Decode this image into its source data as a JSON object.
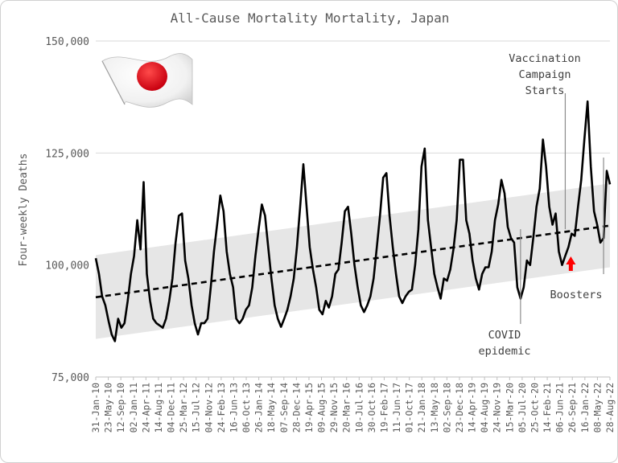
{
  "chart_data": {
    "type": "line",
    "title": "All-Cause Mortality Mortality, Japan",
    "ylabel": "Four-weekly Deaths",
    "xlabel": "",
    "ylim": [
      75000,
      150000
    ],
    "y_ticks": [
      "75,000",
      "100,000",
      "125,000",
      "150,000"
    ],
    "y_tick_values": [
      75000,
      100000,
      125000,
      150000
    ],
    "grid": "horizontal",
    "x_tick_labels": [
      "31-Jan-10",
      "23-May-10",
      "12-Sep-10",
      "02-Jan-11",
      "24-Apr-11",
      "14-Aug-11",
      "04-Dec-11",
      "25-Mar-12",
      "15-Jul-12",
      "04-Nov-12",
      "24-Feb-13",
      "16-Jun-13",
      "06-Oct-13",
      "26-Jan-14",
      "18-May-14",
      "07-Sep-14",
      "28-Dec-14",
      "19-Apr-15",
      "09-Aug-15",
      "29-Nov-15",
      "20-Mar-16",
      "10-Jul-16",
      "30-Oct-16",
      "19-Feb-17",
      "11-Jun-17",
      "01-Oct-17",
      "21-Jan-18",
      "13-May-18",
      "02-Sep-18",
      "23-Dec-18",
      "14-Apr-19",
      "04-Aug-19",
      "24-Nov-19",
      "15-Mar-20",
      "05-Jul-20",
      "25-Oct-20",
      "14-Feb-21",
      "06-Jun-21",
      "26-Sep-21",
      "16-Jan-22",
      "08-May-22",
      "28-Aug-22"
    ],
    "series": [
      {
        "style": "solid",
        "color": "#000000",
        "values": [
          101500,
          98000,
          93000,
          91000,
          87500,
          84500,
          83000,
          88000,
          86000,
          87000,
          92000,
          98000,
          102000,
          110000,
          103500,
          118500,
          98000,
          92000,
          88000,
          87000,
          86500,
          86000,
          88000,
          92000,
          97000,
          105000,
          111000,
          111500,
          101000,
          97000,
          91000,
          87000,
          84500,
          87000,
          87000,
          88000,
          95000,
          103000,
          109000,
          115500,
          112000,
          103000,
          98000,
          95000,
          88000,
          87000,
          88000,
          90000,
          91000,
          95000,
          102000,
          108000,
          113500,
          111000,
          104000,
          97000,
          91000,
          88000,
          86200,
          88000,
          90000,
          93000,
          97000,
          104000,
          113000,
          122500,
          113000,
          104000,
          99000,
          95000,
          90000,
          89000,
          92000,
          90500,
          93000,
          98000,
          99000,
          105000,
          112000,
          113000,
          107000,
          100000,
          95000,
          91000,
          89500,
          91000,
          93000,
          97000,
          104000,
          111000,
          119500,
          120500,
          111000,
          104000,
          98000,
          93000,
          91500,
          93000,
          94000,
          94500,
          100000,
          108000,
          122000,
          126000,
          110000,
          104000,
          98000,
          95000,
          92500,
          97000,
          96500,
          99000,
          103500,
          110000,
          123500,
          123500,
          110000,
          107000,
          101000,
          97000,
          94500,
          98000,
          99500,
          99500,
          103000,
          110000,
          113500,
          119000,
          116000,
          108500,
          106000,
          105000,
          95000,
          92500,
          95000,
          101000,
          100000,
          106000,
          113000,
          117000,
          128000,
          122000,
          113000,
          109000,
          111500,
          103000,
          100000,
          102000,
          104000,
          107000,
          106500,
          113000,
          119000,
          128000,
          136500,
          122000,
          112000,
          109000,
          105000,
          106000,
          121000,
          118000
        ]
      },
      {
        "name": "",
        "style": "dashed",
        "color": "#000000",
        "start": 92800,
        "end": 108800
      }
    ],
    "band": {
      "color": "#e6e6e6",
      "lower_start": 83500,
      "lower_end": 99500,
      "upper_start": 102200,
      "upper_end": 118200
    },
    "annotations": [
      {
        "text_lines": [
          "Vaccination",
          "Campaign",
          "Starts"
        ],
        "x_index": 147,
        "y_value": 108000
      },
      {
        "text_lines": [
          "COVID",
          "epidemic"
        ],
        "x_index": 133,
        "y_value": 108000
      },
      {
        "text_lines": [
          "Boosters"
        ],
        "x_index": 159,
        "y_value": 107000
      }
    ],
    "arrows": [
      {
        "x_index": 149,
        "color": "#ff0000"
      },
      {
        "x_index": 165,
        "color": "#ff0000"
      }
    ],
    "flag_icon": "japan-flag-icon",
    "colors": {
      "flag_disc": "#e60012",
      "axis_text": "#595959",
      "grid": "#d9d9d9"
    }
  }
}
